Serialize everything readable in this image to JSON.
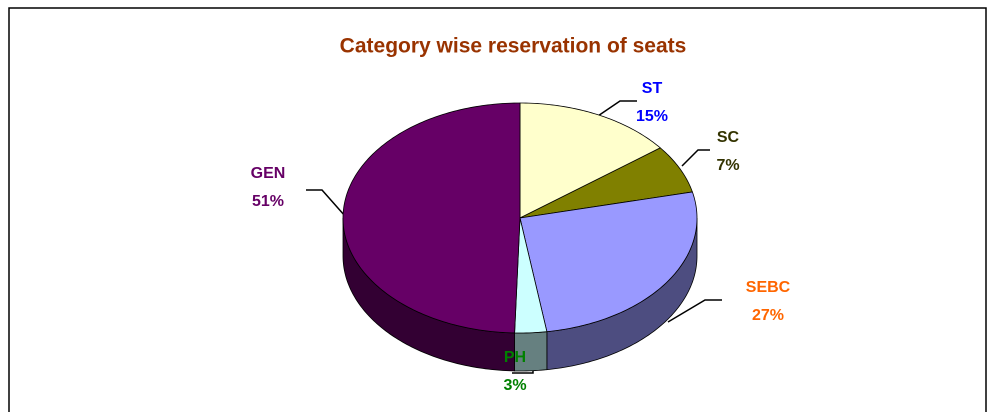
{
  "chart_data": {
    "type": "pie3d",
    "title": "Category wise reservation of seats",
    "categories": [
      "ST",
      "SC",
      "SEBC",
      "PH",
      "GEN"
    ],
    "values": [
      15,
      7,
      27,
      3,
      51
    ],
    "value_labels": [
      "15%",
      "7%",
      "27%",
      "3%",
      "51%"
    ],
    "colors": [
      "#ffffcc",
      "#808000",
      "#9999ff",
      "#ccffff",
      "#660066"
    ],
    "label_colors": [
      "#0000ff",
      "#333300",
      "#ff6600",
      "#008000",
      "#660066"
    ]
  }
}
